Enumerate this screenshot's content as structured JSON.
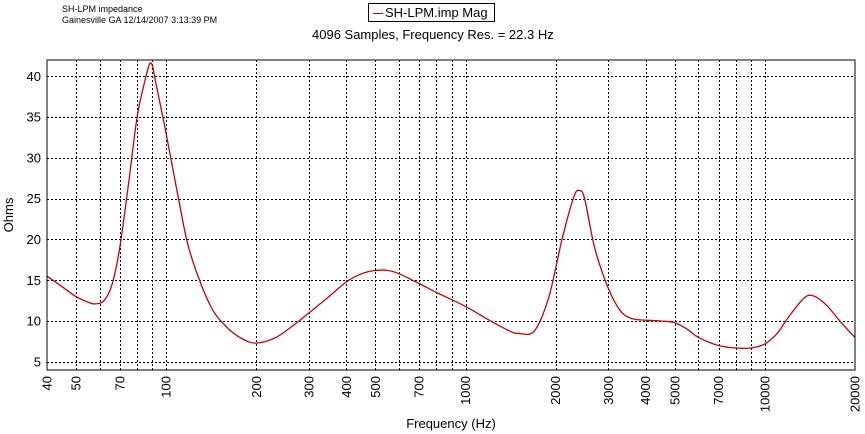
{
  "header": {
    "line1": "SH-LPM impedance",
    "line2": "Gainesville GA 12/14/2007 3:13:39 PM"
  },
  "legend": {
    "label": "SH-LPM.imp Mag"
  },
  "chart_data": {
    "type": "line",
    "title": "4096 Samples, Frequency Res. = 22.3 Hz",
    "xlabel": "Frequency (Hz)",
    "ylabel": "Ohms",
    "xscale": "log",
    "xlim": [
      40,
      20000
    ],
    "ylim": [
      4,
      42
    ],
    "grid": true,
    "legend_position": "top-center",
    "xticks": [
      {
        "value": 40,
        "label": "40"
      },
      {
        "value": 50,
        "label": "50"
      },
      {
        "value": 70,
        "label": "70"
      },
      {
        "value": 100,
        "label": "100"
      },
      {
        "value": 200,
        "label": "200"
      },
      {
        "value": 300,
        "label": "300"
      },
      {
        "value": 400,
        "label": "400"
      },
      {
        "value": 500,
        "label": "500"
      },
      {
        "value": 700,
        "label": "700"
      },
      {
        "value": 1000,
        "label": "1000"
      },
      {
        "value": 2000,
        "label": "2000"
      },
      {
        "value": 3000,
        "label": "3000"
      },
      {
        "value": 4000,
        "label": "4000"
      },
      {
        "value": 5000,
        "label": "5000"
      },
      {
        "value": 7000,
        "label": "7000"
      },
      {
        "value": 10000,
        "label": "10000"
      },
      {
        "value": 20000,
        "label": "20000"
      }
    ],
    "x_minor_gridlines": [
      60,
      80,
      90,
      600,
      800,
      900,
      6000,
      8000,
      9000
    ],
    "yticks": [
      5,
      10,
      15,
      20,
      25,
      30,
      35,
      40
    ],
    "series": [
      {
        "name": "SH-LPM.imp Mag",
        "color": "#cc0000",
        "x": [
          40,
          45,
          50,
          55,
          58,
          62,
          66,
          70,
          75,
          80,
          85,
          88,
          90,
          92,
          95,
          100,
          110,
          120,
          140,
          160,
          180,
          200,
          230,
          260,
          300,
          350,
          400,
          450,
          500,
          550,
          600,
          700,
          800,
          1000,
          1200,
          1400,
          1500,
          1700,
          1900,
          2100,
          2300,
          2400,
          2500,
          2700,
          3000,
          3300,
          3600,
          4000,
          4500,
          5000,
          5500,
          6000,
          7000,
          8000,
          9000,
          10000,
          11000,
          12000,
          13500,
          14500,
          16000,
          18000,
          20000
        ],
        "y": [
          15.5,
          14.2,
          13.0,
          12.3,
          12.1,
          12.5,
          14.5,
          19,
          27,
          35,
          39.5,
          41.5,
          41.3,
          39.5,
          37,
          33,
          25,
          18.5,
          12,
          9.2,
          7.8,
          7.3,
          7.9,
          9.2,
          11,
          13,
          14.8,
          15.8,
          16.2,
          16.2,
          15.8,
          14.6,
          13.5,
          11.8,
          10.1,
          8.8,
          8.5,
          8.8,
          13,
          20,
          25.2,
          26,
          25,
          19,
          14,
          11.2,
          10.3,
          10.1,
          10.0,
          9.8,
          9.0,
          8.0,
          7.0,
          6.7,
          6.7,
          7.2,
          8.5,
          10.5,
          12.8,
          13.1,
          12.0,
          9.8,
          8.0
        ]
      }
    ]
  }
}
